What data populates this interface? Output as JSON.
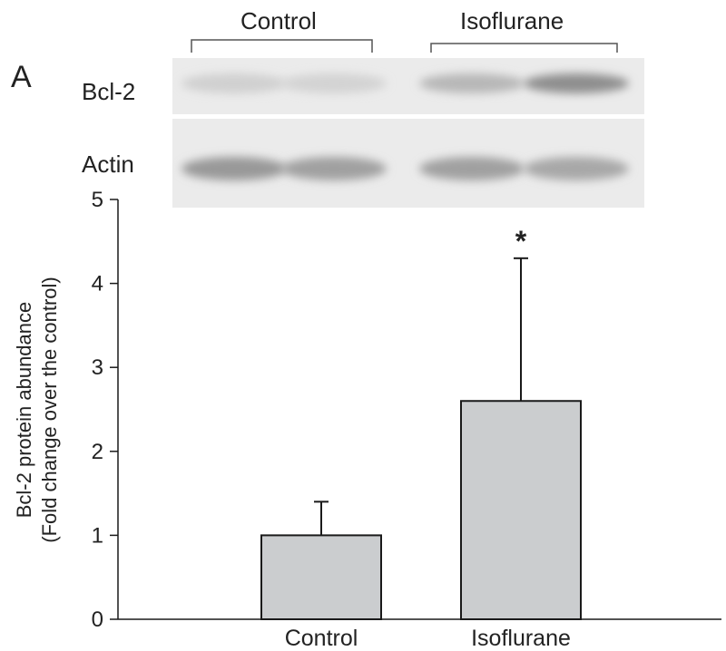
{
  "figure": {
    "panel_label": "A"
  },
  "blot": {
    "group_labels": [
      "Control",
      "Isoflurane"
    ],
    "rows": [
      {
        "label": "Bcl-2",
        "band_intensity": [
          0.18,
          0.16,
          0.35,
          0.62
        ]
      },
      {
        "label": "Actin",
        "band_intensity": [
          0.55,
          0.5,
          0.5,
          0.45
        ]
      }
    ]
  },
  "chart_data": {
    "type": "bar",
    "categories": [
      "Control",
      "Isoflurane"
    ],
    "values": [
      1.0,
      2.6
    ],
    "error_up": [
      0.4,
      1.7
    ],
    "significance": [
      "",
      "*"
    ],
    "ylabel_line1": "Bcl-2 protein abundance",
    "ylabel_line2": "(Fold change over the control)",
    "ylim": [
      0,
      5
    ],
    "yticks": [
      "0",
      "1",
      "2",
      "3",
      "4",
      "5"
    ],
    "grid": false,
    "colors": {
      "bar_fill": "#cbcdcf",
      "bar_stroke": "#1a1a1a",
      "axis": "#1a1a1a"
    }
  }
}
